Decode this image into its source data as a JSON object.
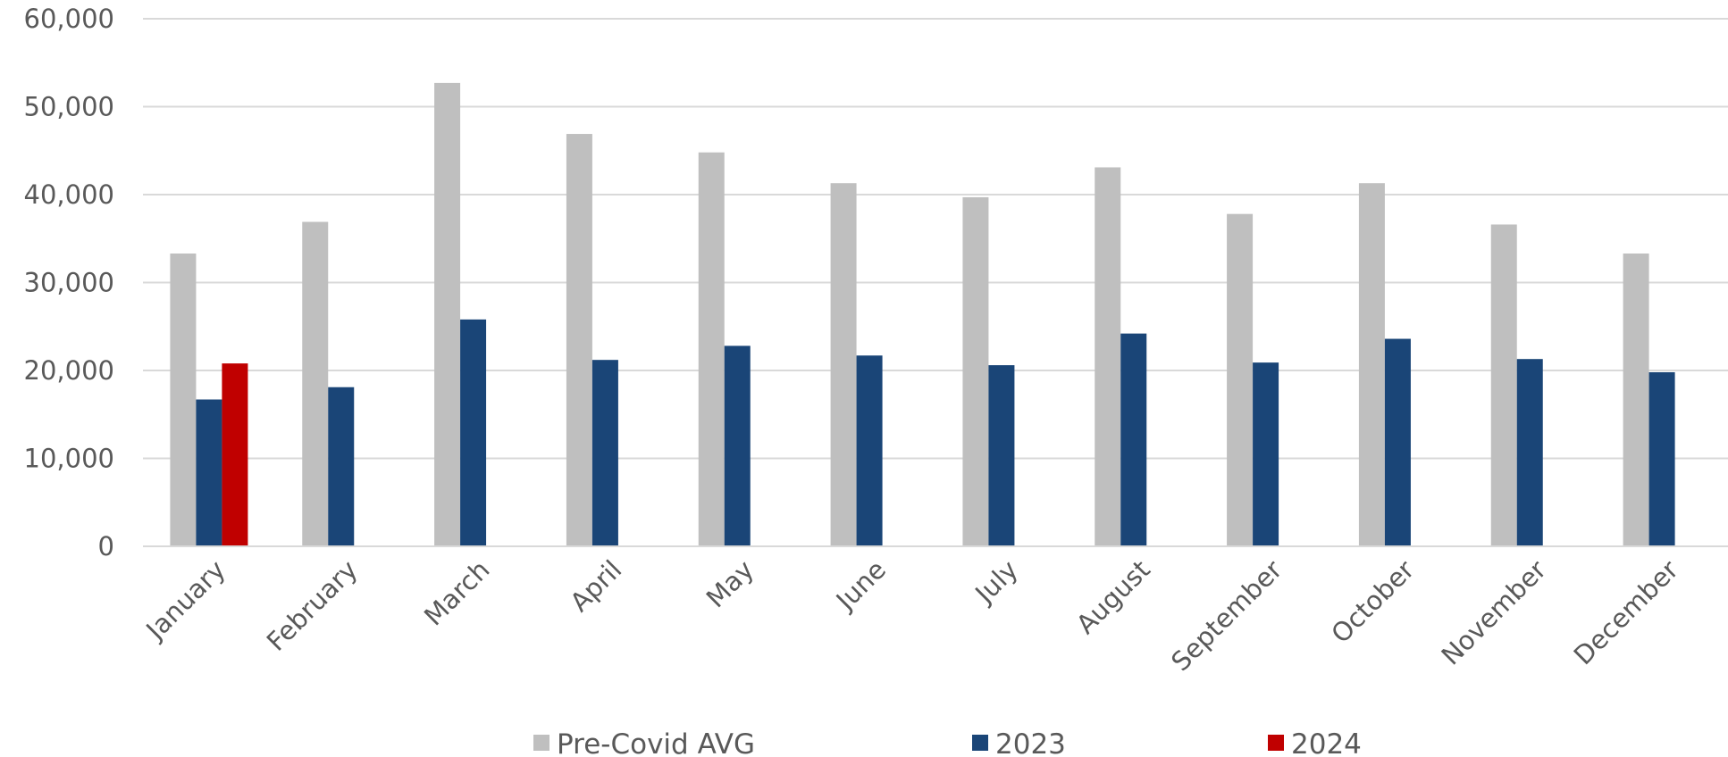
{
  "chart_data": {
    "type": "bar",
    "categories": [
      "January",
      "February",
      "March",
      "April",
      "May",
      "June",
      "July",
      "August",
      "September",
      "October",
      "November",
      "December"
    ],
    "series": [
      {
        "name": "Pre-Covid AVG",
        "color": "#bfbfbf",
        "values": [
          33300,
          36900,
          52700,
          46900,
          44800,
          41300,
          39700,
          43100,
          37800,
          41300,
          36600,
          33300
        ]
      },
      {
        "name": "2023",
        "color": "#1a4577",
        "values": [
          16700,
          18100,
          25800,
          21200,
          22800,
          21700,
          20600,
          24200,
          20900,
          23600,
          21300,
          19800
        ]
      },
      {
        "name": "2024",
        "color": "#c00000",
        "values": [
          20800,
          null,
          null,
          null,
          null,
          null,
          null,
          null,
          null,
          null,
          null,
          null
        ]
      }
    ],
    "y_ticks": [
      "0",
      "10,000",
      "20,000",
      "30,000",
      "40,000",
      "50,000",
      "60,000"
    ],
    "ylim": [
      0,
      60000
    ],
    "grid": true,
    "legend_position": "bottom"
  }
}
